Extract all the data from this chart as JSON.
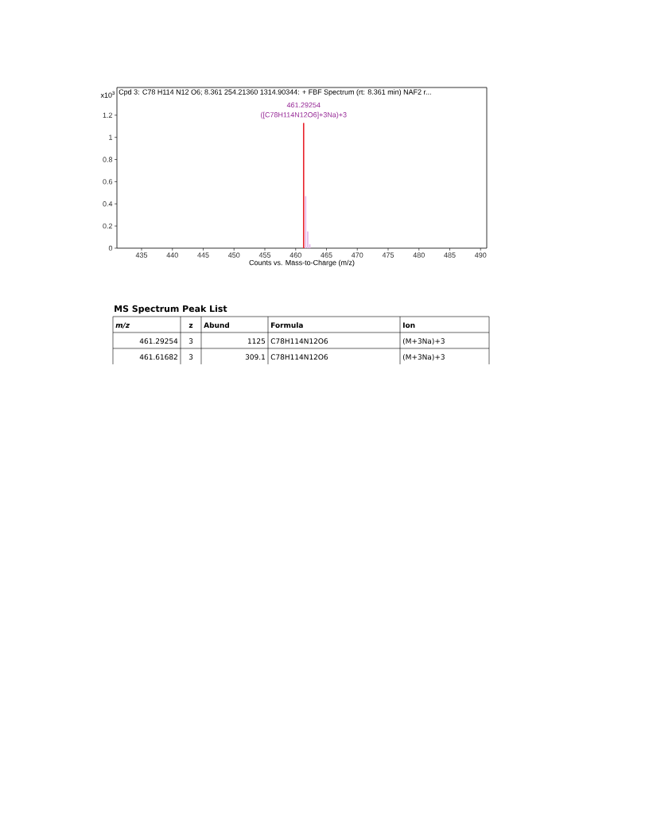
{
  "chart_data": [
    {
      "type": "bar",
      "title": "Cpd 3: C78 H114 N12 O6; 8.361 254.21360 1314.90344: + FBF Spectrum (rt: 8.361 min) NAF2 r...",
      "ylabel": "x10$^{3}$",
      "xlabel": "Counts vs. Mass-to-Charge (m/z)",
      "xlim": [
        431,
        491
      ],
      "xticks": [
        435,
        440,
        445,
        450,
        455,
        460,
        465,
        470,
        475,
        480,
        485,
        490
      ],
      "ylim": [
        0,
        1.45
      ],
      "yticks": [
        0,
        0.2,
        0.4,
        0.6,
        0.8,
        1,
        1.2
      ],
      "series": [
        {
          "color": "#e4b4ea",
          "x": [
            461.62,
            461.96,
            462.29
          ],
          "values": [
            0.47,
            0.15,
            0.035
          ]
        },
        {
          "color": "#e8202a",
          "x": [
            461.29254
          ],
          "values": [
            1.13
          ]
        }
      ],
      "annotations": [
        "461.29254",
        "([C78H114N12O6]+3Na)+3"
      ]
    },
    {
      "type": "other",
      "title": "MS Spectrum Peak List",
      "annotations": [
        "m/z",
        "z",
        "Abund",
        "Formula",
        "Ion",
        "461.29254",
        "3",
        "1125",
        "C78H114N12O6",
        "(M+3Na)+3",
        "461.61682",
        "3",
        "309.1",
        "C78H114N12O6",
        "(M+3Na)+3"
      ]
    }
  ]
}
